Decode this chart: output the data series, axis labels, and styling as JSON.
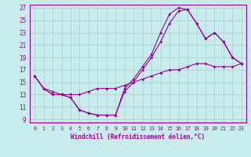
{
  "xlabel": "Windchill (Refroidissement éolien,°C)",
  "bg_color": "#c8ecec",
  "line_color": "#990099",
  "grid_color": "#aacccc",
  "xlim": [
    -0.5,
    23.5
  ],
  "ylim": [
    8.5,
    27.5
  ],
  "yticks": [
    9,
    11,
    13,
    15,
    17,
    19,
    21,
    23,
    25,
    27
  ],
  "xticks": [
    0,
    1,
    2,
    3,
    4,
    5,
    6,
    7,
    8,
    9,
    10,
    11,
    12,
    13,
    14,
    15,
    16,
    17,
    18,
    19,
    20,
    21,
    22,
    23
  ],
  "line1_x": [
    0,
    1,
    2,
    3,
    4,
    5,
    6,
    7,
    8,
    9,
    10,
    11,
    12,
    13,
    14,
    15,
    16,
    17,
    18,
    19,
    20,
    21,
    22,
    23
  ],
  "line1_y": [
    16,
    14,
    13,
    13,
    12.5,
    10.5,
    10,
    9.7,
    9.7,
    9.7,
    13.5,
    15,
    17,
    19,
    21.5,
    24.5,
    26.5,
    26.7,
    24.5,
    22,
    23,
    21.5,
    19,
    18
  ],
  "line2_x": [
    0,
    1,
    2,
    3,
    4,
    5,
    6,
    7,
    8,
    9,
    10,
    11,
    12,
    13,
    14,
    15,
    16,
    17,
    18,
    19,
    20,
    21,
    22,
    23
  ],
  "line2_y": [
    16,
    14,
    13,
    13,
    12.5,
    10.5,
    10,
    9.7,
    9.7,
    9.7,
    14,
    15.5,
    17.5,
    19.5,
    23,
    26,
    27,
    26.7,
    24.5,
    22,
    23,
    21.5,
    19,
    18
  ],
  "line3_x": [
    0,
    1,
    2,
    3,
    4,
    5,
    6,
    7,
    8,
    9,
    10,
    11,
    12,
    13,
    14,
    15,
    16,
    17,
    18,
    19,
    20,
    21,
    22,
    23
  ],
  "line3_y": [
    16,
    14,
    13.5,
    13,
    13,
    13,
    13.5,
    14,
    14,
    14,
    14.5,
    15,
    15.5,
    16,
    16.5,
    17,
    17,
    17.5,
    18,
    18,
    17.5,
    17.5,
    17.5,
    18
  ]
}
